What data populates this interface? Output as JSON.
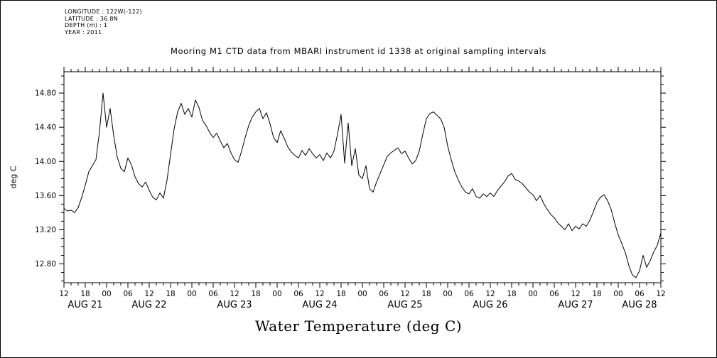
{
  "colors": {
    "background": "#ffffff",
    "line": "#000000",
    "text": "#000000"
  },
  "header": {
    "longitude": "LONGITUDE : 122W(-122)",
    "latitude": "LATITUDE : 36.8N",
    "depth": "DEPTH (m) : 1",
    "year": "YEAR : 2011"
  },
  "title": "Mooring M1 CTD data from MBARI instrument id 1338 at original sampling intervals",
  "footer_label": "Water Temperature (deg C)",
  "chart_data": {
    "type": "line",
    "title": "Mooring M1 CTD data from MBARI instrument id 1338 at original sampling intervals",
    "xlabel": "Water Temperature (deg C)",
    "ylabel": "deg C",
    "grid": false,
    "legend": false,
    "x_unit": "hours since 2011 AUG 21 12:00",
    "xlim": [
      0,
      168
    ],
    "ylim": [
      12.58,
      15.05
    ],
    "x_major_step": 6,
    "x_minor_step": 2,
    "y_minor_step": 0.1,
    "y_ticks": [
      12.8,
      13.2,
      13.6,
      14.0,
      14.4,
      14.8
    ],
    "y_tick_labels": [
      "12.80",
      "13.20",
      "13.60",
      "14.00",
      "14.40",
      "14.80"
    ],
    "x_tick_labels": [
      "12",
      "18",
      "00",
      "06",
      "12",
      "18",
      "00",
      "06",
      "12",
      "18",
      "00",
      "06",
      "12",
      "18",
      "00",
      "06",
      "12",
      "18",
      "00",
      "06",
      "12",
      "18",
      "00",
      "06",
      "12",
      "18",
      "00",
      "06",
      "12"
    ],
    "date_labels": [
      {
        "label": "AUG 21",
        "hour": 6
      },
      {
        "label": "AUG 22",
        "hour": 24
      },
      {
        "label": "AUG 23",
        "hour": 48
      },
      {
        "label": "AUG 24",
        "hour": 72
      },
      {
        "label": "AUG 25",
        "hour": 96
      },
      {
        "label": "AUG 26",
        "hour": 120
      },
      {
        "label": "AUG 27",
        "hour": 144
      },
      {
        "label": "AUG 28",
        "hour": 162
      }
    ],
    "series": [
      {
        "name": "Water Temperature (deg C)",
        "x_start": 0,
        "x_step": 1,
        "values": [
          13.45,
          13.42,
          13.43,
          13.4,
          13.46,
          13.58,
          13.72,
          13.88,
          13.95,
          14.02,
          14.35,
          14.8,
          14.4,
          14.62,
          14.3,
          14.05,
          13.92,
          13.88,
          14.04,
          13.96,
          13.82,
          13.74,
          13.7,
          13.76,
          13.66,
          13.58,
          13.55,
          13.63,
          13.57,
          13.78,
          14.08,
          14.38,
          14.58,
          14.68,
          14.55,
          14.62,
          14.52,
          14.72,
          14.63,
          14.48,
          14.42,
          14.34,
          14.28,
          14.33,
          14.24,
          14.16,
          14.21,
          14.1,
          14.02,
          13.99,
          14.12,
          14.28,
          14.42,
          14.52,
          14.58,
          14.62,
          14.5,
          14.57,
          14.44,
          14.28,
          14.22,
          14.36,
          14.27,
          14.17,
          14.11,
          14.07,
          14.04,
          14.13,
          14.07,
          14.15,
          14.09,
          14.04,
          14.08,
          14.01,
          14.1,
          14.04,
          14.12,
          14.32,
          14.55,
          13.98,
          14.45,
          13.95,
          14.15,
          13.84,
          13.8,
          13.95,
          13.68,
          13.64,
          13.76,
          13.86,
          13.96,
          14.06,
          14.1,
          14.13,
          14.16,
          14.09,
          14.12,
          14.04,
          13.97,
          14.01,
          14.12,
          14.32,
          14.5,
          14.56,
          14.58,
          14.54,
          14.5,
          14.4,
          14.18,
          14.02,
          13.88,
          13.78,
          13.7,
          13.64,
          13.62,
          13.68,
          13.59,
          13.57,
          13.62,
          13.59,
          13.63,
          13.59,
          13.66,
          13.71,
          13.76,
          13.83,
          13.86,
          13.79,
          13.77,
          13.74,
          13.69,
          13.64,
          13.61,
          13.54,
          13.6,
          13.51,
          13.44,
          13.38,
          13.34,
          13.28,
          13.24,
          13.2,
          13.27,
          13.19,
          13.24,
          13.21,
          13.27,
          13.24,
          13.31,
          13.41,
          13.52,
          13.58,
          13.61,
          13.54,
          13.44,
          13.28,
          13.14,
          13.04,
          12.93,
          12.78,
          12.67,
          12.64,
          12.72,
          12.9,
          12.76,
          12.84,
          12.94,
          13.02,
          13.16
        ]
      }
    ]
  }
}
